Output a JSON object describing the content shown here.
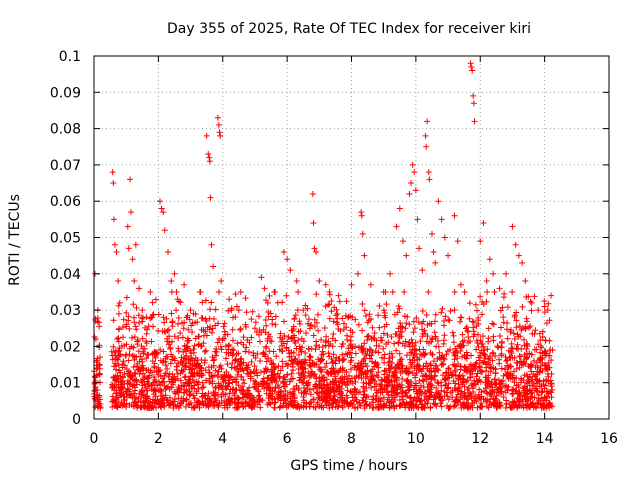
{
  "chart_data": {
    "type": "scatter",
    "title": "Day 355 of 2025, Rate Of TEC Index for receiver kiri",
    "xlabel": "GPS time / hours",
    "ylabel": "ROTI / TECUs",
    "xlim": [
      0,
      16
    ],
    "ylim": [
      0,
      0.1
    ],
    "xticks": [
      "0",
      "2",
      "4",
      "6",
      "8",
      "10",
      "12",
      "14",
      "16"
    ],
    "yticks": [
      "0",
      "0.01",
      "0.02",
      "0.03",
      "0.04",
      "0.05",
      "0.06",
      "0.07",
      "0.08",
      "0.09",
      "0.1"
    ],
    "grid": true,
    "marker": "+",
    "color": "#ff0000",
    "series": [
      {
        "name": "ROTI",
        "points": [
          [
            0.02,
            0.01
          ],
          [
            0.03,
            0.04
          ],
          [
            0.05,
            0.027
          ],
          [
            0.06,
            0.022
          ],
          [
            0.08,
            0.012
          ],
          [
            0.1,
            0.008
          ],
          [
            0.12,
            0.03
          ],
          [
            0.15,
            0.015
          ],
          [
            0.58,
            0.068
          ],
          [
            0.6,
            0.065
          ],
          [
            0.62,
            0.055
          ],
          [
            0.65,
            0.048
          ],
          [
            0.7,
            0.046
          ],
          [
            0.75,
            0.038
          ],
          [
            0.8,
            0.032
          ],
          [
            1.05,
            0.053
          ],
          [
            1.08,
            0.047
          ],
          [
            1.12,
            0.066
          ],
          [
            1.15,
            0.057
          ],
          [
            1.2,
            0.044
          ],
          [
            1.25,
            0.038
          ],
          [
            1.3,
            0.048
          ],
          [
            1.4,
            0.036
          ],
          [
            1.5,
            0.03
          ],
          [
            1.8,
            0.028
          ],
          [
            2.05,
            0.06
          ],
          [
            2.1,
            0.058
          ],
          [
            2.15,
            0.057
          ],
          [
            2.2,
            0.052
          ],
          [
            2.3,
            0.046
          ],
          [
            2.4,
            0.038
          ],
          [
            2.5,
            0.04
          ],
          [
            2.6,
            0.033
          ],
          [
            2.8,
            0.037
          ],
          [
            3.0,
            0.03
          ],
          [
            3.5,
            0.078
          ],
          [
            3.55,
            0.073
          ],
          [
            3.58,
            0.072
          ],
          [
            3.6,
            0.071
          ],
          [
            3.62,
            0.061
          ],
          [
            3.65,
            0.048
          ],
          [
            3.7,
            0.042
          ],
          [
            3.85,
            0.083
          ],
          [
            3.88,
            0.081
          ],
          [
            3.9,
            0.079
          ],
          [
            3.92,
            0.078
          ],
          [
            3.95,
            0.038
          ],
          [
            4.2,
            0.033
          ],
          [
            4.5,
            0.03
          ],
          [
            5.0,
            0.025
          ],
          [
            5.2,
            0.039
          ],
          [
            5.3,
            0.036
          ],
          [
            5.4,
            0.032
          ],
          [
            5.6,
            0.035
          ],
          [
            5.9,
            0.046
          ],
          [
            6.0,
            0.044
          ],
          [
            6.1,
            0.041
          ],
          [
            6.3,
            0.038
          ],
          [
            6.5,
            0.03
          ],
          [
            6.8,
            0.062
          ],
          [
            6.82,
            0.054
          ],
          [
            6.85,
            0.047
          ],
          [
            6.9,
            0.046
          ],
          [
            7.0,
            0.038
          ],
          [
            7.2,
            0.037
          ],
          [
            7.6,
            0.034
          ],
          [
            8.0,
            0.037
          ],
          [
            8.2,
            0.04
          ],
          [
            8.3,
            0.057
          ],
          [
            8.32,
            0.056
          ],
          [
            8.35,
            0.051
          ],
          [
            8.4,
            0.045
          ],
          [
            8.6,
            0.037
          ],
          [
            9.0,
            0.035
          ],
          [
            9.2,
            0.04
          ],
          [
            9.4,
            0.053
          ],
          [
            9.5,
            0.058
          ],
          [
            9.6,
            0.049
          ],
          [
            9.7,
            0.045
          ],
          [
            9.8,
            0.062
          ],
          [
            9.85,
            0.065
          ],
          [
            9.9,
            0.07
          ],
          [
            9.95,
            0.068
          ],
          [
            10.0,
            0.063
          ],
          [
            10.05,
            0.055
          ],
          [
            10.1,
            0.047
          ],
          [
            10.2,
            0.041
          ],
          [
            10.3,
            0.078
          ],
          [
            10.32,
            0.075
          ],
          [
            10.35,
            0.082
          ],
          [
            10.4,
            0.068
          ],
          [
            10.42,
            0.066
          ],
          [
            10.5,
            0.051
          ],
          [
            10.55,
            0.046
          ],
          [
            10.6,
            0.043
          ],
          [
            10.7,
            0.06
          ],
          [
            10.8,
            0.055
          ],
          [
            10.9,
            0.05
          ],
          [
            11.0,
            0.045
          ],
          [
            11.2,
            0.056
          ],
          [
            11.3,
            0.049
          ],
          [
            11.4,
            0.037
          ],
          [
            11.7,
            0.098
          ],
          [
            11.72,
            0.097
          ],
          [
            11.75,
            0.096
          ],
          [
            11.78,
            0.089
          ],
          [
            11.8,
            0.087
          ],
          [
            11.82,
            0.082
          ],
          [
            12.0,
            0.049
          ],
          [
            12.1,
            0.054
          ],
          [
            12.2,
            0.038
          ],
          [
            12.3,
            0.044
          ],
          [
            12.4,
            0.04
          ],
          [
            12.6,
            0.036
          ],
          [
            12.8,
            0.04
          ],
          [
            13.0,
            0.053
          ],
          [
            13.1,
            0.048
          ],
          [
            13.2,
            0.045
          ],
          [
            13.3,
            0.043
          ],
          [
            13.4,
            0.038
          ],
          [
            13.6,
            0.032
          ],
          [
            13.8,
            0.03
          ],
          [
            14.0,
            0.031
          ],
          [
            14.1,
            0.03
          ],
          [
            14.2,
            0.034
          ]
        ]
      }
    ]
  }
}
